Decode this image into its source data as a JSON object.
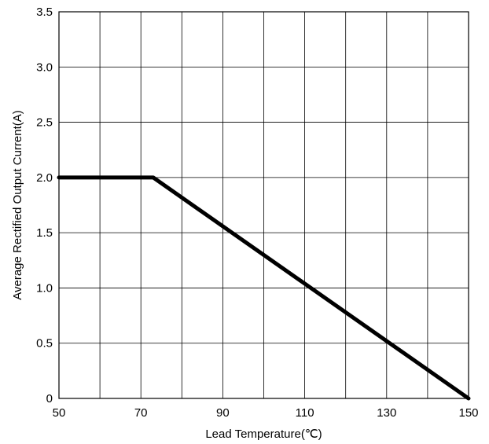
{
  "chart_data": {
    "type": "line",
    "title": "",
    "xlabel": "Lead Temperature(℃)",
    "ylabel": "Average Rectified Output Current(A)",
    "xlim": [
      50,
      150
    ],
    "ylim": [
      0,
      3.5
    ],
    "x_ticks": [
      50,
      60,
      70,
      80,
      90,
      100,
      110,
      120,
      130,
      140,
      150
    ],
    "x_tick_labels": [
      "50",
      "",
      "70",
      "",
      "90",
      "",
      "110",
      "",
      "130",
      "",
      "150"
    ],
    "y_ticks": [
      0,
      0.5,
      1.0,
      1.5,
      2.0,
      2.5,
      3.0,
      3.5
    ],
    "y_tick_labels": [
      "0",
      "0.5",
      "1.0",
      "1.5",
      "2.0",
      "2.5",
      "3.0",
      "3.5"
    ],
    "grid": true,
    "series": [
      {
        "x": [
          50,
          73,
          150
        ],
        "y": [
          2.0,
          2.0,
          0
        ]
      }
    ],
    "colors": {
      "line": "#000000",
      "grid": "#000000",
      "background": "#ffffff"
    }
  }
}
